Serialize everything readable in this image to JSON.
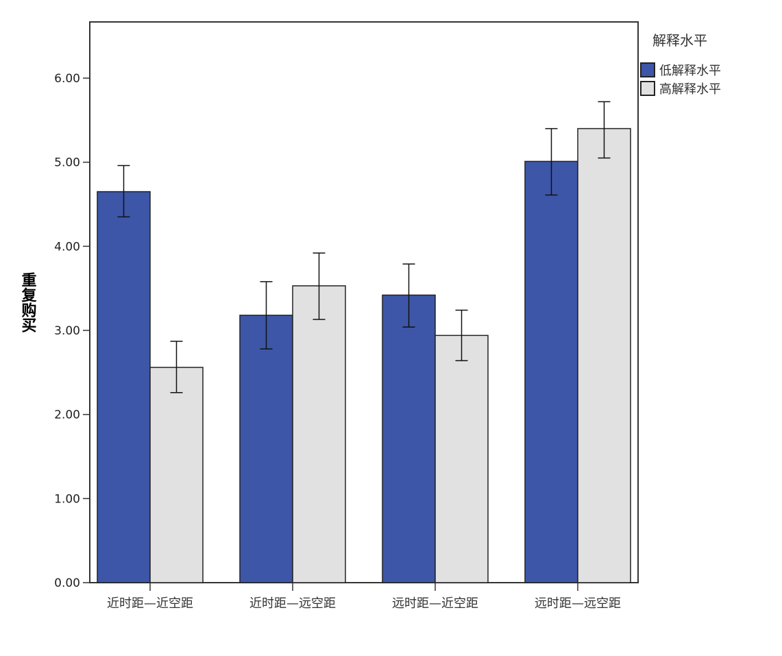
{
  "chart_data": {
    "type": "bar",
    "title": "",
    "xlabel": "",
    "ylabel": "重复购买",
    "ylim": [
      0,
      6.6
    ],
    "yticks": [
      "0.00",
      "1.00",
      "2.00",
      "3.00",
      "4.00",
      "5.00",
      "6.00"
    ],
    "grid": false,
    "categories": [
      "近时距—近空距",
      "近时距—远空距",
      "远时距—近空距",
      "远时距—远空距"
    ],
    "legend": {
      "title": "解释水平",
      "placement": "right"
    },
    "series": [
      {
        "name": "低解释水平",
        "color": "#3d56a8",
        "values": [
          4.65,
          3.18,
          3.42,
          5.01
        ],
        "err_low": [
          4.35,
          2.78,
          3.04,
          4.61
        ],
        "err_high": [
          4.96,
          3.58,
          3.79,
          5.4
        ]
      },
      {
        "name": "高解释水平",
        "color": "#e1e1e1",
        "values": [
          2.56,
          3.53,
          2.94,
          5.4
        ],
        "err_low": [
          2.26,
          3.13,
          2.64,
          5.05
        ],
        "err_high": [
          2.87,
          3.92,
          3.24,
          5.72
        ]
      }
    ]
  }
}
